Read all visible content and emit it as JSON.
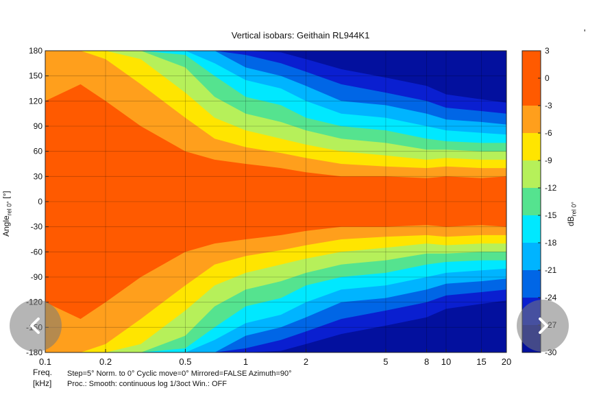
{
  "chart_data": {
    "type": "heatmap",
    "title": "Vertical isobars: Geithain  RL944K1",
    "xlabel_line1": "Freq.",
    "xlabel_line2": "[kHz]",
    "ylabel": "Angle",
    "ylabel_sub": "rel 0°",
    "ylabel_unit": " [°]",
    "colorbar_label": "dB",
    "colorbar_label_sub": "rel 0°",
    "x_scale": "log",
    "xlim": [
      0.1,
      20
    ],
    "ylim": [
      -180,
      180
    ],
    "x_ticks": [
      0.1,
      0.2,
      0.5,
      1,
      2,
      5,
      8,
      10,
      15,
      20
    ],
    "x_tick_labels": [
      "0.1",
      "0.2",
      "0.5",
      "1",
      "2",
      "5",
      "8",
      "10",
      "15",
      "20"
    ],
    "y_ticks": [
      180,
      150,
      120,
      90,
      60,
      30,
      0,
      -30,
      -60,
      -90,
      -120,
      -150,
      -180
    ],
    "y_tick_labels": [
      "180",
      "150",
      "120",
      "90",
      "60",
      "30",
      "0",
      "-30",
      "-60",
      "-90",
      "-120",
      "-150",
      "-180"
    ],
    "colorbar_ticks": [
      "3",
      "0",
      "-3",
      "-6",
      "-9",
      "-12",
      "-15",
      "-18",
      "-21",
      "-24",
      "-27",
      "-30"
    ],
    "levels": [
      3,
      0,
      -3,
      -6,
      -9,
      -12,
      -15,
      -18,
      -21,
      -24,
      -27,
      -30
    ],
    "level_colors": [
      "#ff5a00",
      "#ff5a00",
      "#ff9f1c",
      "#ffe500",
      "#b6f05a",
      "#55e38f",
      "#00e8ff",
      "#00b4ff",
      "#0066e6",
      "#0a1fd0",
      "#03109e"
    ],
    "grid": true,
    "boundaries_note": "angle (deg) at which level is reached, per frequency; symmetric about 0",
    "freqs": [
      0.1,
      0.15,
      0.2,
      0.3,
      0.5,
      0.7,
      1,
      1.5,
      2,
      3,
      5,
      8,
      10,
      15,
      20
    ],
    "contours": {
      "-3": [
        120,
        140,
        120,
        90,
        60,
        50,
        45,
        40,
        35,
        30,
        30,
        28,
        30,
        28,
        30
      ],
      "-6": [
        180,
        180,
        170,
        140,
        100,
        75,
        65,
        58,
        52,
        45,
        42,
        40,
        42,
        40,
        40
      ],
      "-9": [
        180,
        180,
        180,
        170,
        130,
        100,
        85,
        75,
        68,
        60,
        55,
        50,
        52,
        50,
        50
      ],
      "-12": [
        180,
        180,
        180,
        180,
        160,
        125,
        105,
        95,
        85,
        75,
        70,
        62,
        62,
        60,
        60
      ],
      "-15": [
        180,
        180,
        180,
        180,
        175,
        150,
        125,
        115,
        100,
        90,
        85,
        75,
        72,
        70,
        70
      ],
      "-18": [
        180,
        180,
        180,
        180,
        180,
        165,
        145,
        135,
        120,
        105,
        100,
        90,
        85,
        82,
        80
      ],
      "-21": [
        180,
        180,
        180,
        180,
        180,
        180,
        160,
        150,
        138,
        120,
        115,
        105,
        98,
        95,
        92
      ],
      "-24": [
        180,
        180,
        180,
        180,
        180,
        180,
        175,
        165,
        155,
        140,
        130,
        120,
        112,
        108,
        105
      ],
      "-27": [
        180,
        180,
        180,
        180,
        180,
        180,
        180,
        178,
        170,
        158,
        148,
        138,
        128,
        122,
        118
      ]
    },
    "footer_line1": "Step=5°   Norm. to 0°   Cyclic move=0°   Mirrored=FALSE   Azimuth=90°",
    "footer_line2": "Proc.: Smooth: continuous log 1/3oct     Win.: OFF"
  },
  "stray_mark": "'",
  "nav": {
    "prev_icon": "chevron-left-icon",
    "next_icon": "chevron-right-icon"
  }
}
